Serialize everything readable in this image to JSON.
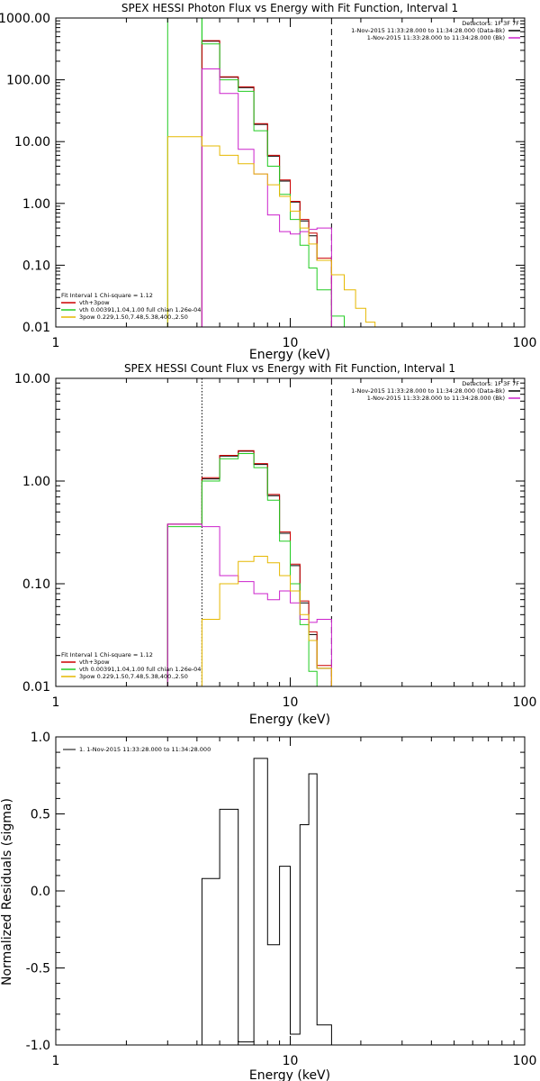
{
  "colors": {
    "black": "#000000",
    "red": "#cc0000",
    "green": "#22cc22",
    "magenta": "#cc22cc",
    "yellow": "#e6b800"
  },
  "chart_data": [
    {
      "type": "line",
      "title": "SPEX HESSI Photon Flux vs Energy with Fit Function, Interval 1",
      "xlabel": "Energy (keV)",
      "ylabel": "",
      "xscale": "log",
      "yscale": "log",
      "xlim": [
        1,
        100
      ],
      "ylim": [
        0.01,
        1000
      ],
      "xticks": [
        {
          "v": 1,
          "label": "1"
        },
        {
          "v": 10,
          "label": "10"
        },
        {
          "v": 100,
          "label": "100"
        }
      ],
      "yticks": [
        {
          "v": 0.01,
          "label": "0.01"
        },
        {
          "v": 0.1,
          "label": "0.10"
        },
        {
          "v": 1,
          "label": "1.00"
        },
        {
          "v": 10,
          "label": "10.00"
        },
        {
          "v": 100,
          "label": "100.00"
        },
        {
          "v": 1000,
          "label": "1000.00"
        }
      ],
      "vlines": [
        {
          "x": 4.2,
          "style": "solid",
          "color": "#22cc22"
        },
        {
          "x": 15.0,
          "style": "dashed",
          "color": "#000000"
        }
      ],
      "legend_top": [
        "Detectors: 1F 3F 7F",
        "1-Nov-2015 11:33:28.000 to 11:34:28.000 (Data-Bk)",
        "1-Nov-2015 11:33:28.000 to 11:34:28.000 (Bk)"
      ],
      "legend_top_colors": [
        "",
        "#000000",
        "#cc22cc"
      ],
      "fit_lines": [
        "Fit Interval 1   Chi-square = 1.12",
        "vth+3pow",
        "vth 0.00391,1.04,1.00  full chian 1.26e-04",
        "3pow 0.229,1.50,7.48,5.38,400.,2.50"
      ],
      "fit_colors": [
        "",
        "#cc0000",
        "#22cc22",
        "#e6b800"
      ],
      "edges": [
        3.0,
        4.2,
        5.0,
        6.0,
        7.0,
        8.0,
        9.0,
        10.0,
        11.0,
        12.0,
        13.0,
        15.0,
        17.0,
        19.0,
        21.0,
        23.0
      ],
      "series": [
        {
          "color": "#000000",
          "values": [
            null,
            420,
            110,
            75,
            19,
            5.8,
            2.3,
            1.05,
            0.52,
            0.3,
            0.12,
            null,
            null,
            null,
            null
          ]
        },
        {
          "color": "#cc0000",
          "values": [
            null,
            430,
            112,
            77,
            19.5,
            6.0,
            2.4,
            1.08,
            0.55,
            0.33,
            0.13,
            null,
            null,
            null,
            null
          ]
        },
        {
          "color": "#22cc22",
          "values": [
            1000,
            380,
            100,
            65,
            15,
            4.0,
            1.4,
            0.55,
            0.21,
            0.09,
            0.04,
            0.015,
            null,
            null,
            null
          ]
        },
        {
          "color": "#cc22cc",
          "values": [
            null,
            150,
            60,
            7.5,
            3.0,
            0.65,
            0.35,
            0.32,
            0.35,
            0.38,
            0.4,
            null,
            null,
            null,
            null
          ]
        },
        {
          "color": "#e6b800",
          "values": [
            12,
            8.5,
            6,
            4.4,
            3.0,
            2.0,
            1.3,
            0.75,
            0.4,
            0.22,
            0.12,
            0.07,
            0.04,
            0.02,
            0.012
          ]
        }
      ]
    },
    {
      "type": "line",
      "title": "SPEX HESSI Count Flux vs Energy with Fit Function, Interval 1",
      "xlabel": "Energy (keV)",
      "ylabel": "",
      "xscale": "log",
      "yscale": "log",
      "xlim": [
        1,
        100
      ],
      "ylim": [
        0.01,
        10
      ],
      "xticks": [
        {
          "v": 1,
          "label": "1"
        },
        {
          "v": 10,
          "label": "10"
        },
        {
          "v": 100,
          "label": "100"
        }
      ],
      "yticks": [
        {
          "v": 0.01,
          "label": "0.01"
        },
        {
          "v": 0.1,
          "label": "0.10"
        },
        {
          "v": 1,
          "label": "1.00"
        },
        {
          "v": 10,
          "label": "10.00"
        }
      ],
      "vlines": [
        {
          "x": 4.2,
          "style": "dotted",
          "color": "#000000"
        },
        {
          "x": 15.0,
          "style": "dashed",
          "color": "#000000"
        }
      ],
      "legend_top": [
        "Detectors: 1F 3F 7F",
        "1-Nov-2015 11:33:28.000 to 11:34:28.000 (Data-Bk)",
        "1-Nov-2015 11:33:28.000 to 11:34:28.000 (Bk)"
      ],
      "legend_top_colors": [
        "",
        "#000000",
        "#cc22cc"
      ],
      "fit_lines": [
        "Fit Interval 1   Chi-square = 1.12",
        "vth+3pow",
        "vth 0.00391,1.04,1.00  full chian 1.26e-04",
        "3pow 0.229,1.50,7.48,5.38,400.,2.50"
      ],
      "fit_colors": [
        "",
        "#cc0000",
        "#22cc22",
        "#e6b800"
      ],
      "edges": [
        3.0,
        4.2,
        5.0,
        6.0,
        7.0,
        8.0,
        9.0,
        10.0,
        11.0,
        12.0,
        13.0,
        15.0
      ],
      "series": [
        {
          "color": "#000000",
          "values": [
            0.38,
            1.05,
            1.75,
            1.95,
            1.45,
            0.72,
            0.31,
            0.15,
            0.065,
            0.032,
            0.015
          ]
        },
        {
          "color": "#cc0000",
          "values": [
            0.38,
            1.08,
            1.78,
            1.98,
            1.48,
            0.74,
            0.32,
            0.155,
            0.068,
            0.034,
            0.016
          ]
        },
        {
          "color": "#22cc22",
          "values": [
            0.36,
            1.0,
            1.65,
            1.85,
            1.35,
            0.65,
            0.26,
            0.1,
            0.04,
            0.014,
            0.007
          ]
        },
        {
          "color": "#cc22cc",
          "values": [
            0.38,
            0.36,
            0.12,
            0.105,
            0.08,
            0.07,
            0.085,
            0.065,
            0.045,
            0.042,
            0.045
          ]
        },
        {
          "color": "#e6b800",
          "values": [
            null,
            0.045,
            0.1,
            0.165,
            0.185,
            0.16,
            0.12,
            0.085,
            0.05,
            0.028,
            0.015
          ]
        }
      ]
    },
    {
      "type": "line",
      "title": "",
      "xlabel": "Energy (keV)",
      "ylabel": "Normalized Residuals (sigma)",
      "xscale": "log",
      "yscale": "linear",
      "xlim": [
        1,
        100
      ],
      "ylim": [
        -1.0,
        1.0
      ],
      "xticks": [
        {
          "v": 1,
          "label": "1"
        },
        {
          "v": 10,
          "label": "10"
        },
        {
          "v": 100,
          "label": "100"
        }
      ],
      "yticks": [
        {
          "v": -1.0,
          "label": "-1.0"
        },
        {
          "v": -0.5,
          "label": "-0.5"
        },
        {
          "v": 0.0,
          "label": "0.0"
        },
        {
          "v": 0.5,
          "label": "0.5"
        },
        {
          "v": 1.0,
          "label": "1.0"
        }
      ],
      "legend_top": [
        "1. 1-Nov-2015 11:33:28.000 to 11:34:28.000"
      ],
      "edges": [
        4.2,
        5.0,
        6.0,
        7.0,
        8.0,
        9.0,
        10.0,
        11.0,
        12.0,
        13.0,
        15.0
      ],
      "series": [
        {
          "color": "#000000",
          "values": [
            0.08,
            0.53,
            -0.98,
            0.86,
            -0.35,
            0.16,
            -0.93,
            0.43,
            0.76,
            -0.87
          ]
        }
      ]
    }
  ]
}
